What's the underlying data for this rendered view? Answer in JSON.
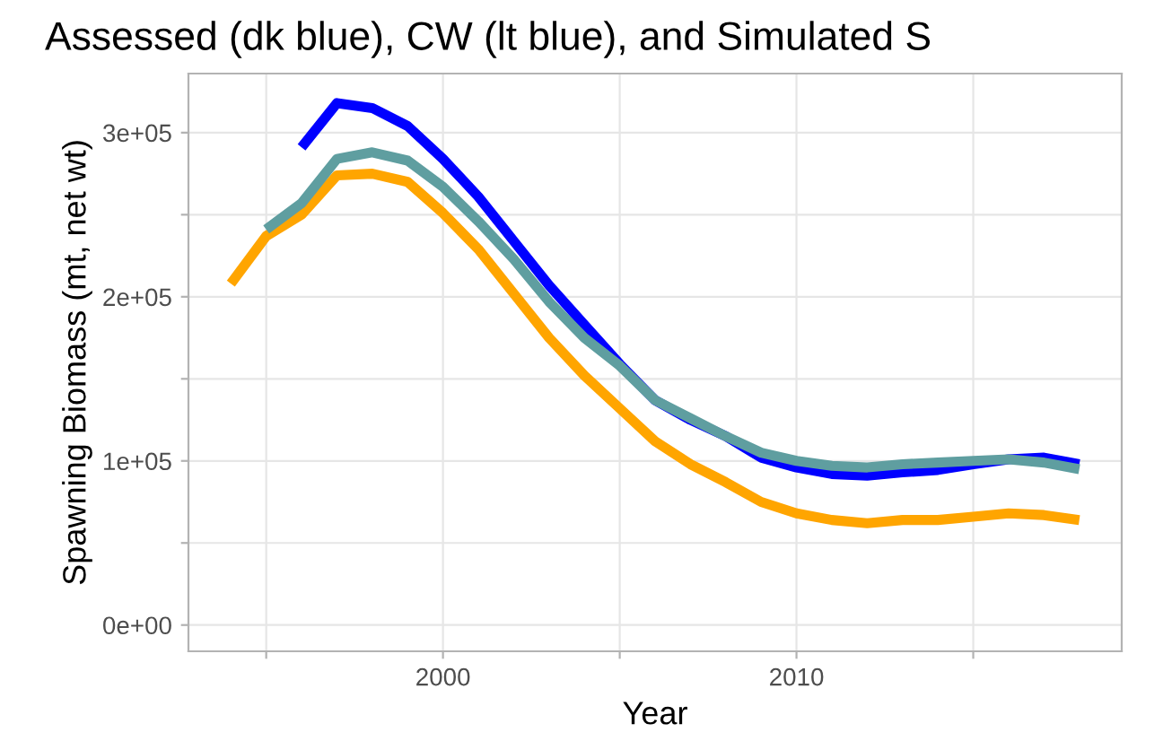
{
  "chart_data": {
    "type": "line",
    "title": "Assessed (dk blue), CW (lt blue), and Simulated S",
    "xlabel": "Year",
    "ylabel": "Spawning Biomass (mt, net wt)",
    "x": [
      1994,
      1995,
      1996,
      1997,
      1998,
      1999,
      2000,
      2001,
      2002,
      2003,
      2004,
      2005,
      2006,
      2007,
      2008,
      2009,
      2010,
      2011,
      2012,
      2013,
      2014,
      2015,
      2016,
      2017,
      2018
    ],
    "series": [
      {
        "color": "#0000ff",
        "values": [
          null,
          null,
          291000,
          318000,
          315000,
          304000,
          284000,
          261000,
          234000,
          207000,
          183000,
          159000,
          137000,
          125000,
          115000,
          102000,
          96000,
          92000,
          91000,
          93000,
          94500,
          98000,
          101000,
          102000,
          98000
        ]
      },
      {
        "color": "#ffa500",
        "values": [
          208000,
          237000,
          250000,
          274000,
          275000,
          270000,
          251000,
          229000,
          202000,
          175000,
          152000,
          132000,
          112000,
          98000,
          87000,
          75000,
          68000,
          64000,
          62000,
          64000,
          64000,
          66000,
          68000,
          67000,
          64000
        ]
      },
      {
        "color": "#5f9ea0",
        "values": [
          null,
          241000,
          257000,
          284000,
          288000,
          283000,
          267000,
          246000,
          223000,
          197000,
          175000,
          158000,
          137000,
          126000,
          115000,
          105000,
          100000,
          97000,
          96000,
          98000,
          99000,
          100000,
          101000,
          99000,
          95000
        ]
      }
    ],
    "xlim": [
      1992.8,
      2019.2
    ],
    "ylim": [
      -16000,
      336000
    ],
    "xticks": [
      {
        "value": 1995,
        "label": null
      },
      2000,
      {
        "value": 2005,
        "label": null
      },
      2010,
      {
        "value": 2015,
        "label": null
      }
    ],
    "yticks": [
      {
        "value": 0,
        "label": "0e+00"
      },
      {
        "value": 50000,
        "label": null
      },
      {
        "value": 100000,
        "label": "1e+05"
      },
      {
        "value": 150000,
        "label": null
      },
      {
        "value": 200000,
        "label": "2e+05"
      },
      {
        "value": 250000,
        "label": null
      },
      {
        "value": 300000,
        "label": "3e+05"
      }
    ],
    "grid": true,
    "line_style": "solid",
    "marker": "none"
  }
}
